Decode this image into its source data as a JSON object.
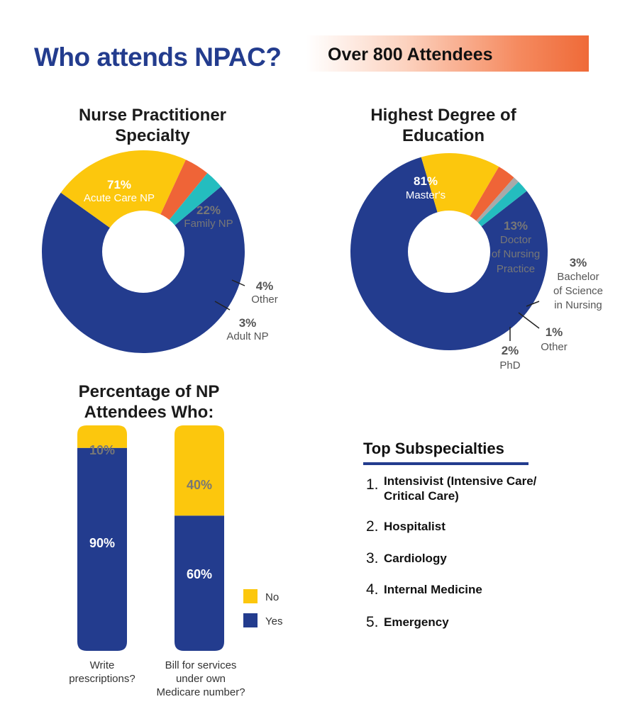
{
  "header": {
    "title": "Who attends NPAC?",
    "banner": "Over 800 Attendees"
  },
  "colors": {
    "navy": "#233c8e",
    "yellow": "#fcc70d",
    "orange": "#ef6437",
    "teal": "#24bdbf",
    "gray": "#a9a9a9"
  },
  "chart_data": [
    {
      "type": "pie",
      "title": "Nurse Practitioner Specialty",
      "slices": [
        {
          "label": "Acute Care NP",
          "value": 71,
          "display": "71%",
          "color": "#233c8e"
        },
        {
          "label": "Family NP",
          "value": 22,
          "display": "22%",
          "color": "#fcc70d"
        },
        {
          "label": "Other",
          "value": 4,
          "display": "4%",
          "color": "#ef6437"
        },
        {
          "label": "Adult NP",
          "value": 3,
          "display": "3%",
          "color": "#24bdbf"
        }
      ]
    },
    {
      "type": "pie",
      "title": "Highest Degree of Education",
      "slices": [
        {
          "label": "Master's",
          "value": 81,
          "display": "81%",
          "color": "#233c8e"
        },
        {
          "label": "Doctor of Nursing Practice",
          "value": 13,
          "display": "13%",
          "color": "#fcc70d"
        },
        {
          "label": "Bachelor of Science in Nursing",
          "value": 3,
          "display": "3%",
          "color": "#ef6437"
        },
        {
          "label": "Other",
          "value": 1,
          "display": "1%",
          "color": "#a9a9a9"
        },
        {
          "label": "PhD",
          "value": 2,
          "display": "2%",
          "color": "#24bdbf"
        }
      ]
    },
    {
      "type": "bar",
      "title": "Percentage of NP Attendees Who:",
      "categories": [
        "Write prescriptions?",
        "Bill for services under own Medicare number?"
      ],
      "series": [
        {
          "name": "Yes",
          "values": [
            90,
            60
          ],
          "labels": [
            "90%",
            "60%"
          ],
          "color": "#233c8e"
        },
        {
          "name": "No",
          "values": [
            10,
            40
          ],
          "labels": [
            "10%",
            "40%"
          ],
          "color": "#fcc70d"
        }
      ],
      "legend": [
        "No",
        "Yes"
      ]
    }
  ],
  "subspecialties": {
    "title": "Top Subspecialties",
    "items": [
      {
        "num": "1.",
        "text": "Intensivist (Intensive Care/ Critical Care)"
      },
      {
        "num": "2.",
        "text": "Hospitalist"
      },
      {
        "num": "3.",
        "text": "Cardiology"
      },
      {
        "num": "4.",
        "text": "Internal Medicine"
      },
      {
        "num": "5.",
        "text": "Emergency"
      }
    ]
  }
}
